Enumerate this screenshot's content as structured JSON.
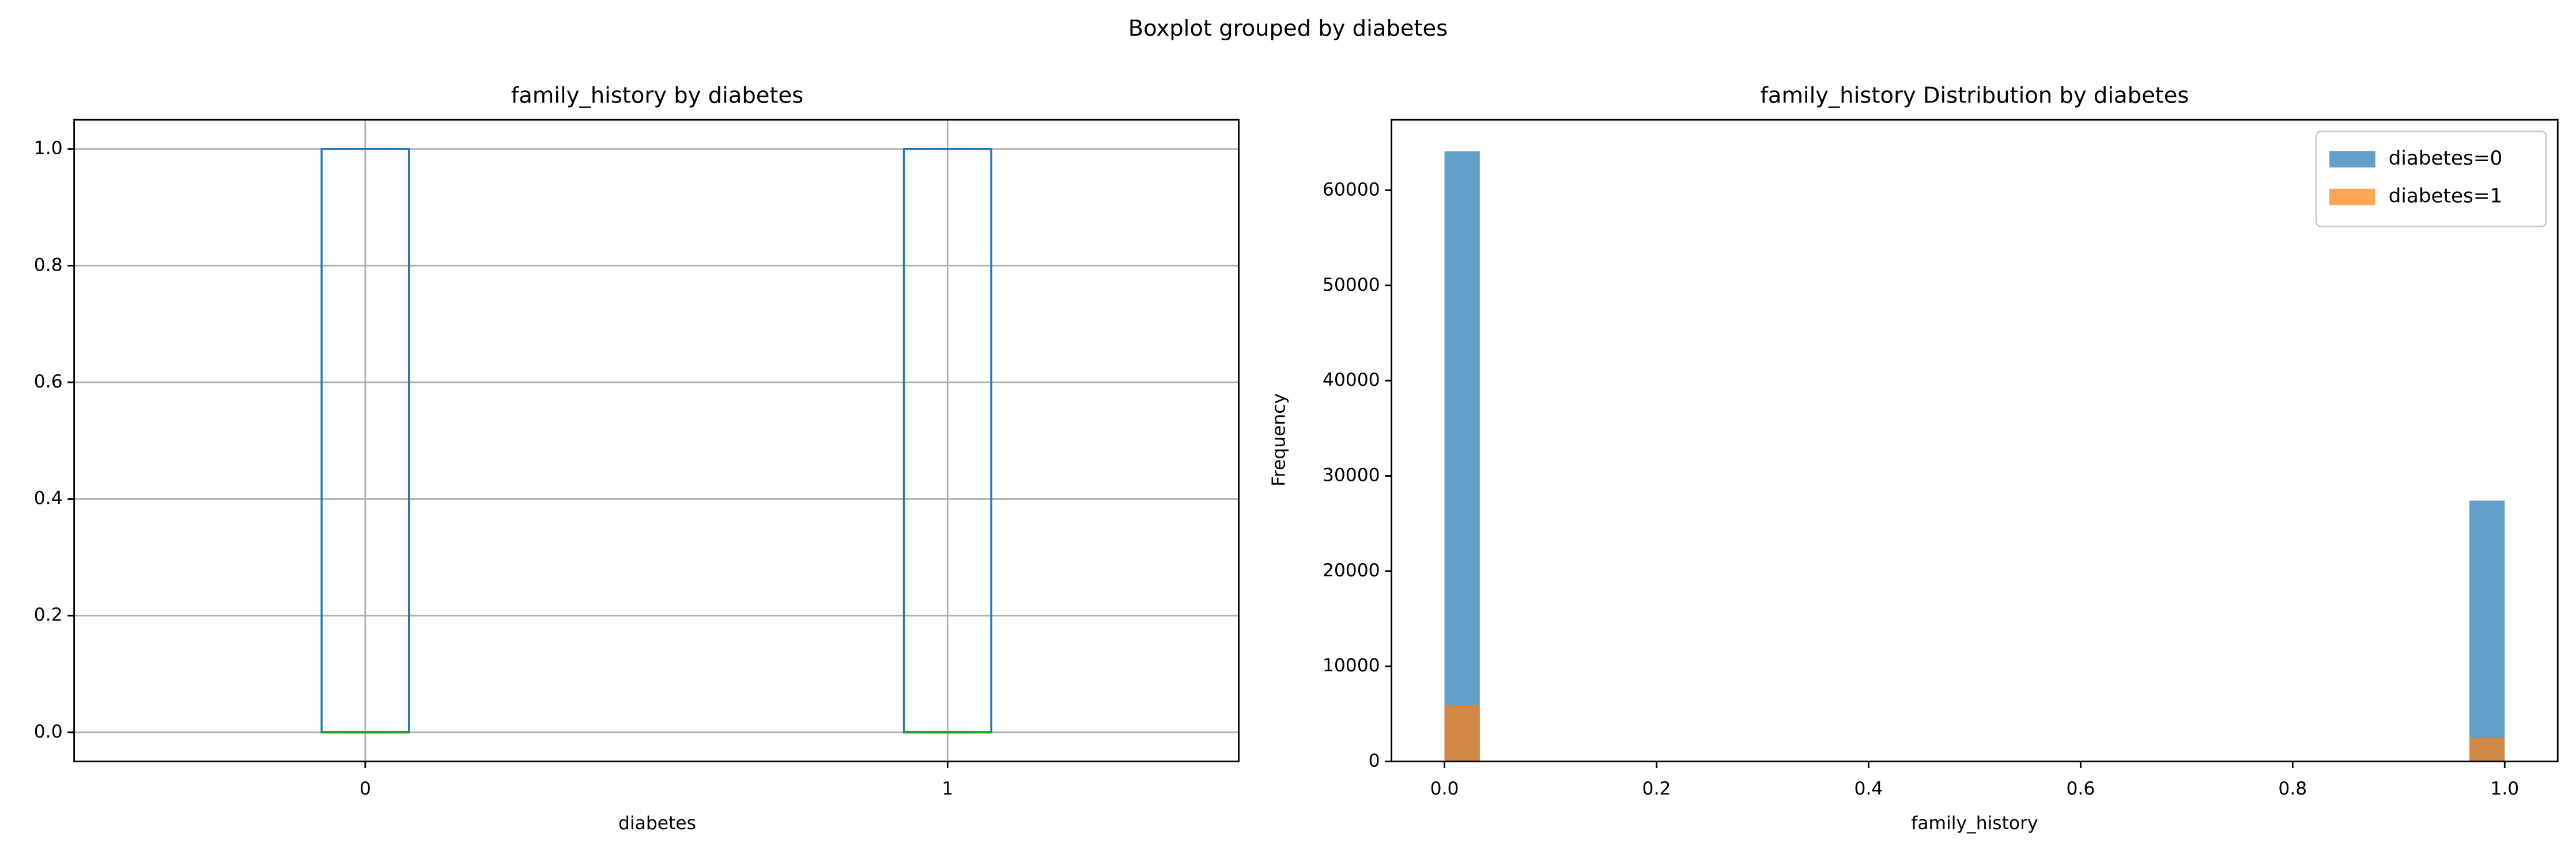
{
  "suptitle": "Boxplot grouped by diabetes",
  "chart_data": [
    {
      "type": "box",
      "title": "family_history by diabetes",
      "xlabel": "diabetes",
      "categories": [
        "0",
        "1"
      ],
      "boxes": [
        {
          "min": 0,
          "q1": 0,
          "median": 0,
          "q3": 1,
          "max": 1
        },
        {
          "min": 0,
          "q1": 0,
          "median": 0,
          "q3": 1,
          "max": 1
        }
      ],
      "box_color": "#1f77b4",
      "median_color": "#2ca02c",
      "whisker_color": "#000000",
      "ylim": [
        -0.05,
        1.05
      ],
      "yticks": [
        {
          "value": 0,
          "label": "0.0"
        },
        {
          "value": 0.2,
          "label": "0.2"
        },
        {
          "value": 0.4,
          "label": "0.4"
        },
        {
          "value": 0.6,
          "label": "0.6"
        },
        {
          "value": 0.8,
          "label": "0.8"
        },
        {
          "value": 1,
          "label": "1.0"
        }
      ],
      "grid": true
    },
    {
      "type": "histogram",
      "title": "family_history Distribution by diabetes",
      "xlabel": "family_history",
      "ylabel": "Frequency",
      "bins": [
        0,
        0.0333,
        0.0667,
        0.1,
        0.1333,
        0.1667,
        0.2,
        0.2333,
        0.2667,
        0.3,
        0.3333,
        0.3667,
        0.4,
        0.4333,
        0.4667,
        0.5,
        0.5333,
        0.5667,
        0.6,
        0.6333,
        0.6667,
        0.7,
        0.7333,
        0.7667,
        0.8,
        0.8333,
        0.8667,
        0.9,
        0.9333,
        0.9667,
        1
      ],
      "series": [
        {
          "name": "diabetes=0",
          "color": "#1f77b4",
          "values": [
            64100,
            0,
            0,
            0,
            0,
            0,
            0,
            0,
            0,
            0,
            0,
            0,
            0,
            0,
            0,
            0,
            0,
            0,
            0,
            0,
            0,
            0,
            0,
            0,
            0,
            0,
            0,
            0,
            0,
            27400
          ]
        },
        {
          "name": "diabetes=1",
          "color": "#ff7f0e",
          "values": [
            5900,
            0,
            0,
            0,
            0,
            0,
            0,
            0,
            0,
            0,
            0,
            0,
            0,
            0,
            0,
            0,
            0,
            0,
            0,
            0,
            0,
            0,
            0,
            0,
            0,
            0,
            0,
            0,
            0,
            2500
          ]
        }
      ],
      "opacity": 0.7,
      "xlim": [
        -0.05,
        1.05
      ],
      "xticks": [
        {
          "value": 0,
          "label": "0.0"
        },
        {
          "value": 0.2,
          "label": "0.2"
        },
        {
          "value": 0.4,
          "label": "0.4"
        },
        {
          "value": 0.6,
          "label": "0.6"
        },
        {
          "value": 0.8,
          "label": "0.8"
        },
        {
          "value": 1,
          "label": "1.0"
        }
      ],
      "ylim": [
        0,
        67400
      ],
      "yticks": [
        0,
        10000,
        20000,
        30000,
        40000,
        50000,
        60000
      ],
      "legend": "upper right",
      "grid": false
    }
  ]
}
